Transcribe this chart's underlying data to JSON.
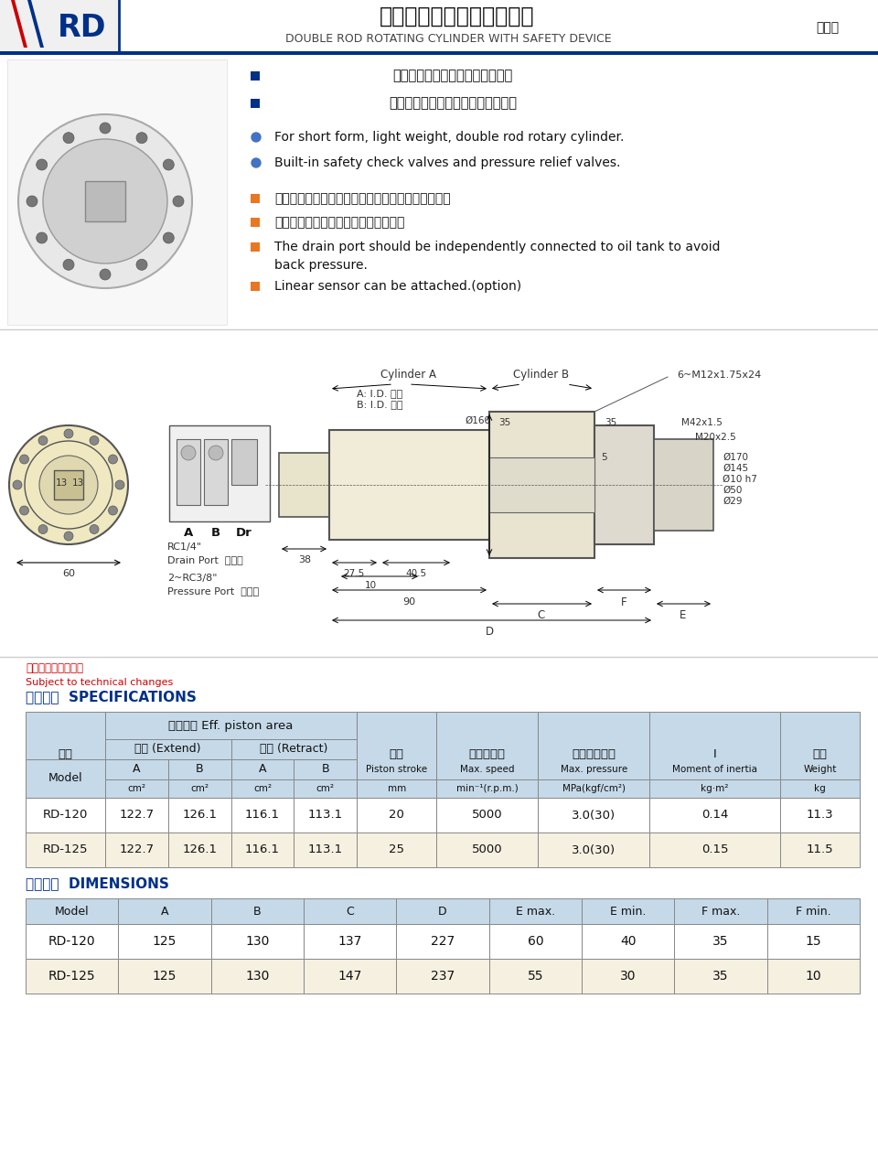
{
  "title_cn": "附逆止閥雙桿型迴轉油壓缸",
  "title_en": "DOUBLE ROD ROTATING CYLINDER WITH SAFETY DEVICE",
  "title_type": "雙桿型",
  "logo_text": "RD",
  "bg_color": "#ffffff",
  "blue_dark": "#003087",
  "orange": "#e87722",
  "table_header_bg": "#c5d9e8",
  "table_row_alt": "#f5f0e0",
  "table_row_white": "#ffffff",
  "note_red": "#cc0000",
  "bullet_blue": "#4472c4",
  "bullet_orange": "#e87722",
  "logo_red": "#cc0000",
  "header_line_blue": "#003087",
  "features_cn": [
    "短型，軽量，雙桿型迴轉油壓缸。",
    "內建逆止閥自鎖機構及壓力洩壓閥。"
  ],
  "features_en": [
    "For short form, light weight, double rod rotary cylinder.",
    "Built-in safety check valves and pressure relief valves."
  ],
  "notes_cn": [
    "洩油孔配管務必單獨接回油壓槽，以避免產生背壓。",
    "可附加線性定位系統機構。（選購品）"
  ],
  "notes_en_1a": "The drain port should be independently connected to oil tank to avoid",
  "notes_en_1b": "back pressure.",
  "notes_en_2": "Linear sensor can be attached.(option)",
  "reserve_note_cn": "保留規格修改的權利",
  "reserve_note_en": "Subject to technical changes",
  "spec_section_cn": "技術規格",
  "spec_section_en": "SPECIFICATIONS",
  "dim_section_cn": "外型尺寸",
  "dim_section_en": "DIMENSIONS",
  "piston_area_cn": "活塞面積 Eff. piston area",
  "extend_cn": "押側 (Extend)",
  "retract_cn": "拉側 (Retract)",
  "model_cn": "型號",
  "stroke_cn": "行程",
  "maxspeed_cn": "最高迴轉數",
  "maxpressure_cn": "最高使用壓力",
  "weight_cn": "重量",
  "spec_data": [
    [
      "RD-120",
      "122.7",
      "126.1",
      "116.1",
      "113.1",
      "20",
      "5000",
      "3.0(30)",
      "0.14",
      "11.3"
    ],
    [
      "RD-125",
      "122.7",
      "126.1",
      "116.1",
      "113.1",
      "25",
      "5000",
      "3.0(30)",
      "0.15",
      "11.5"
    ]
  ],
  "dim_headers": [
    "Model",
    "A",
    "B",
    "C",
    "D",
    "E max.",
    "E min.",
    "F max.",
    "F min."
  ],
  "dim_data": [
    [
      "RD-120",
      "125",
      "130",
      "137",
      "227",
      "60",
      "40",
      "35",
      "15"
    ],
    [
      "RD-125",
      "125",
      "130",
      "147",
      "237",
      "55",
      "30",
      "35",
      "10"
    ]
  ]
}
